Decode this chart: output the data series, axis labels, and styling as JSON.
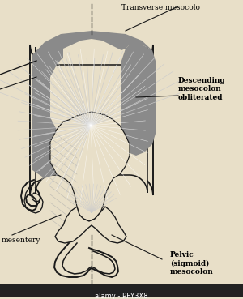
{
  "bg_color": "#e8dfc8",
  "labels": {
    "transverse": "Transverse mesocolo",
    "descending": "Descending\nmesocolon\nobliterated",
    "mesentery": "mesentery",
    "pelvic": "Pelvic\n(sigmoid)\nmesocolon"
  },
  "dark_gray": "#8a8a8a",
  "darker_gray": "#6a6a6a",
  "light_cream": "#e8dfc8",
  "hatched_cream": "#ddd5b8",
  "line_color": "#1a1a1a",
  "line_width": 1.4
}
